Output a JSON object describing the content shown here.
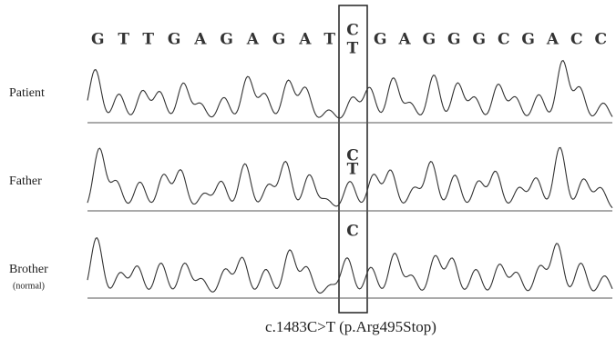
{
  "sequence_left": "GTTGAGAGAT",
  "sequence_right": "GAGGGCGACC",
  "rows": [
    {
      "label": "Patient",
      "bases": [
        "C",
        "T"
      ]
    },
    {
      "label": "Father",
      "bases": [
        "C",
        "T"
      ]
    },
    {
      "label": "Brother",
      "note": "(normal)",
      "bases": [
        "C"
      ]
    }
  ],
  "caption": "c.1483C>T (p.Arg495Stop)"
}
